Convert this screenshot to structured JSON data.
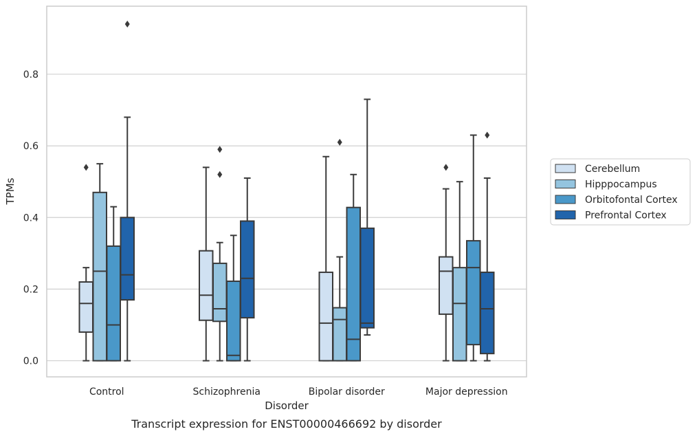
{
  "chart_data": {
    "type": "box",
    "caption": "Transcript expression for ENST00000466692 by disorder",
    "xlabel": "Disorder",
    "ylabel": "TPMs",
    "ylim": [
      -0.045,
      0.99
    ],
    "yticks": [
      0.0,
      0.2,
      0.4,
      0.6,
      0.8
    ],
    "ytick_labels": [
      "0.0",
      "0.2",
      "0.4",
      "0.6",
      "0.8"
    ],
    "grid": "horizontal",
    "legend_position": "right",
    "categories": [
      "Control",
      "Schizophrenia",
      "Bipolar disorder",
      "Major depression"
    ],
    "series": [
      {
        "name": "Cerebellum",
        "color": "#d0e1f2",
        "boxes": [
          {
            "whislo": 0.0,
            "q1": 0.08,
            "med": 0.16,
            "q3": 0.22,
            "whishi": 0.26,
            "fliers": [
              0.54
            ]
          },
          {
            "whislo": 0.0,
            "q1": 0.113,
            "med": 0.183,
            "q3": 0.307,
            "whishi": 0.54,
            "fliers": []
          },
          {
            "whislo": 0.0,
            "q1": 0.0,
            "med": 0.105,
            "q3": 0.247,
            "whishi": 0.57,
            "fliers": []
          },
          {
            "whislo": 0.0,
            "q1": 0.13,
            "med": 0.25,
            "q3": 0.29,
            "whishi": 0.48,
            "fliers": [
              0.54
            ]
          }
        ]
      },
      {
        "name": "Hipppocampus",
        "color": "#94c4df",
        "boxes": [
          {
            "whislo": 0.0,
            "q1": 0.0,
            "med": 0.25,
            "q3": 0.47,
            "whishi": 0.55,
            "fliers": []
          },
          {
            "whislo": 0.0,
            "q1": 0.11,
            "med": 0.145,
            "q3": 0.272,
            "whishi": 0.33,
            "fliers": [
              0.52,
              0.59
            ]
          },
          {
            "whislo": 0.0,
            "q1": 0.0,
            "med": 0.115,
            "q3": 0.148,
            "whishi": 0.29,
            "fliers": [
              0.61
            ]
          },
          {
            "whislo": 0.0,
            "q1": 0.0,
            "med": 0.16,
            "q3": 0.26,
            "whishi": 0.5,
            "fliers": []
          }
        ]
      },
      {
        "name": "Orbitofontal Cortex",
        "color": "#4a98c9",
        "boxes": [
          {
            "whislo": 0.0,
            "q1": 0.0,
            "med": 0.1,
            "q3": 0.32,
            "whishi": 0.43,
            "fliers": []
          },
          {
            "whislo": 0.0,
            "q1": 0.0,
            "med": 0.015,
            "q3": 0.222,
            "whishi": 0.35,
            "fliers": []
          },
          {
            "whislo": 0.0,
            "q1": 0.0,
            "med": 0.06,
            "q3": 0.428,
            "whishi": 0.52,
            "fliers": []
          },
          {
            "whislo": 0.0,
            "q1": 0.045,
            "med": 0.26,
            "q3": 0.335,
            "whishi": 0.63,
            "fliers": []
          }
        ]
      },
      {
        "name": "Prefrontal Cortex",
        "color": "#2164ab",
        "boxes": [
          {
            "whislo": 0.0,
            "q1": 0.17,
            "med": 0.24,
            "q3": 0.4,
            "whishi": 0.68,
            "fliers": [
              0.94
            ]
          },
          {
            "whislo": 0.0,
            "q1": 0.12,
            "med": 0.23,
            "q3": 0.39,
            "whishi": 0.51,
            "fliers": []
          },
          {
            "whislo": 0.072,
            "q1": 0.092,
            "med": 0.105,
            "q3": 0.37,
            "whishi": 0.73,
            "fliers": []
          },
          {
            "whislo": 0.0,
            "q1": 0.02,
            "med": 0.145,
            "q3": 0.247,
            "whishi": 0.51,
            "fliers": [
              0.63
            ]
          }
        ]
      }
    ]
  }
}
